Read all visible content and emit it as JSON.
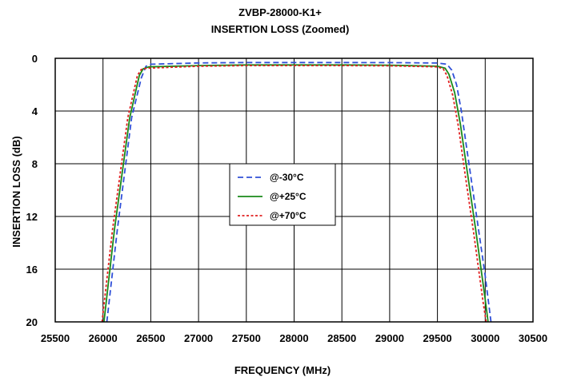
{
  "chart_data": {
    "type": "line",
    "title": "ZVBP-28000-K1+",
    "subtitle": "INSERTION LOSS (Zoomed)",
    "xlabel": "FREQUENCY (MHz)",
    "ylabel": "INSERTION LOSS (dB)",
    "xlim": [
      25500,
      30500
    ],
    "ylim": [
      0,
      20
    ],
    "y_inverted": true,
    "grid": true,
    "legend_position": "center-left",
    "x_ticks": [
      "25500",
      "26000",
      "26500",
      "27000",
      "27500",
      "28000",
      "28500",
      "29000",
      "29500",
      "30000",
      "30500"
    ],
    "y_ticks": [
      "0",
      "4",
      "8",
      "12",
      "16",
      "20"
    ],
    "series": [
      {
        "name": "@-30°C",
        "color": "#3050d8",
        "dash": "dash",
        "x": [
          26040,
          26150,
          26300,
          26400,
          26450,
          26500,
          27000,
          27500,
          28000,
          28500,
          29000,
          29500,
          29600,
          29650,
          29700,
          29750,
          29800,
          29900,
          30000,
          30060
        ],
        "y": [
          20,
          13,
          4.5,
          1.5,
          0.6,
          0.45,
          0.35,
          0.32,
          0.32,
          0.32,
          0.33,
          0.36,
          0.45,
          0.9,
          2.0,
          4.0,
          6.5,
          11.5,
          16.5,
          20
        ]
      },
      {
        "name": "@+25°C",
        "color": "#1a8a1a",
        "dash": "solid",
        "x": [
          26010,
          26120,
          26280,
          26380,
          26420,
          26480,
          27000,
          27500,
          28000,
          28500,
          29000,
          29500,
          29580,
          29620,
          29680,
          29740,
          29800,
          29900,
          30000,
          30030
        ],
        "y": [
          20,
          13,
          4.5,
          1.3,
          0.8,
          0.65,
          0.55,
          0.5,
          0.5,
          0.5,
          0.52,
          0.6,
          0.75,
          1.2,
          2.6,
          5.0,
          8.0,
          13.0,
          18.3,
          20
        ]
      },
      {
        "name": "@+70°C",
        "color": "#e02020",
        "dash": "dot",
        "x": [
          25990,
          26100,
          26260,
          26360,
          26400,
          26460,
          27000,
          27500,
          28000,
          28500,
          29000,
          29500,
          29560,
          29600,
          29660,
          29720,
          29780,
          29880,
          29980,
          30010
        ],
        "y": [
          20,
          13,
          4.5,
          1.3,
          0.85,
          0.75,
          0.6,
          0.55,
          0.55,
          0.55,
          0.57,
          0.65,
          0.8,
          1.3,
          2.8,
          5.2,
          8.3,
          13.3,
          18.6,
          20
        ]
      }
    ]
  }
}
